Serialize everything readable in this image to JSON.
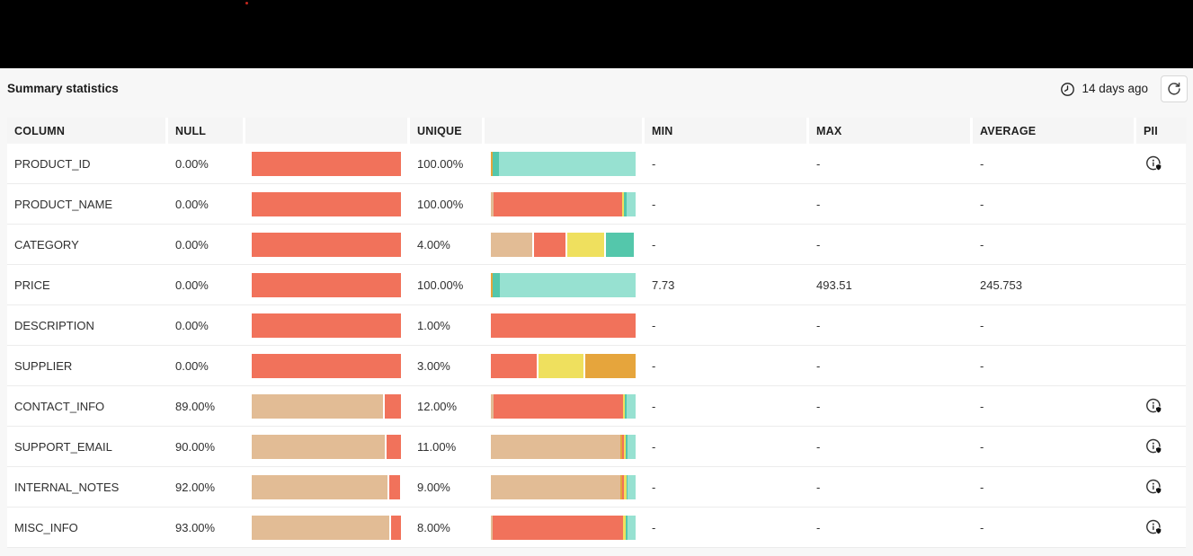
{
  "topbar": {
    "red_dot_color": "#c3271d"
  },
  "header": {
    "title": "Summary statistics",
    "updated": "14 days ago"
  },
  "colors": {
    "salmon": "#F1725B",
    "tan": "#E2BC95",
    "yellow": "#EFE05E",
    "amber": "#E6A53C",
    "teal": "#54C7AB",
    "tealLight": "#97E1D1"
  },
  "table": {
    "headers": [
      "COLUMN",
      "NULL",
      "",
      "UNIQUE",
      "",
      "MIN",
      "MAX",
      "AVERAGE",
      "PII"
    ],
    "rows": [
      {
        "column": "PRODUCT_ID",
        "null_pct": "0.00%",
        "unique_pct": "100.00%",
        "min": "-",
        "max": "-",
        "average": "-",
        "pii": true,
        "null_bar": {
          "gapped": false,
          "segments": [
            [
              "salmon",
              100
            ]
          ]
        },
        "unique_bar": {
          "gapped": false,
          "segments": [
            [
              "amber",
              1.5
            ],
            [
              "teal",
              4
            ],
            [
              "tealLight",
              94.5
            ]
          ]
        }
      },
      {
        "column": "PRODUCT_NAME",
        "null_pct": "0.00%",
        "unique_pct": "100.00%",
        "min": "-",
        "max": "-",
        "average": "-",
        "pii": false,
        "null_bar": {
          "gapped": false,
          "segments": [
            [
              "salmon",
              100
            ]
          ]
        },
        "unique_bar": {
          "gapped": false,
          "segments": [
            [
              "tan",
              2
            ],
            [
              "salmon",
              88.5
            ],
            [
              "yellow",
              1.3
            ],
            [
              "teal",
              1.7
            ],
            [
              "tealLight",
              6.5
            ]
          ]
        }
      },
      {
        "column": "CATEGORY",
        "null_pct": "0.00%",
        "unique_pct": "4.00%",
        "min": "-",
        "max": "-",
        "average": "-",
        "pii": false,
        "null_bar": {
          "gapped": false,
          "segments": [
            [
              "salmon",
              100
            ]
          ]
        },
        "unique_bar": {
          "gapped": true,
          "segments": [
            [
              "tan",
              28.5
            ],
            [
              "salmon",
              22
            ],
            [
              "yellow",
              25
            ],
            [
              "teal",
              19.5
            ]
          ]
        }
      },
      {
        "column": "PRICE",
        "null_pct": "0.00%",
        "unique_pct": "100.00%",
        "min": "7.73",
        "max": "493.51",
        "average": "245.753",
        "pii": false,
        "null_bar": {
          "gapped": false,
          "segments": [
            [
              "salmon",
              100
            ]
          ]
        },
        "unique_bar": {
          "gapped": false,
          "segments": [
            [
              "amber",
              1.3
            ],
            [
              "teal",
              4.7
            ],
            [
              "tealLight",
              94
            ]
          ]
        }
      },
      {
        "column": "DESCRIPTION",
        "null_pct": "0.00%",
        "unique_pct": "1.00%",
        "min": "-",
        "max": "-",
        "average": "-",
        "pii": false,
        "null_bar": {
          "gapped": false,
          "segments": [
            [
              "salmon",
              100
            ]
          ]
        },
        "unique_bar": {
          "gapped": false,
          "segments": [
            [
              "salmon",
              100
            ]
          ]
        }
      },
      {
        "column": "SUPPLIER",
        "null_pct": "0.00%",
        "unique_pct": "3.00%",
        "min": "-",
        "max": "-",
        "average": "-",
        "pii": false,
        "null_bar": {
          "gapped": false,
          "segments": [
            [
              "salmon",
              100
            ]
          ]
        },
        "unique_bar": {
          "gapped": true,
          "segments": [
            [
              "salmon",
              31.5
            ],
            [
              "yellow",
              31
            ],
            [
              "amber",
              35
            ]
          ]
        }
      },
      {
        "column": "CONTACT_INFO",
        "null_pct": "89.00%",
        "unique_pct": "12.00%",
        "min": "-",
        "max": "-",
        "average": "-",
        "pii": true,
        "null_bar": {
          "gapped": true,
          "segments": [
            [
              "tan",
              88
            ],
            [
              "salmon",
              10.5
            ]
          ]
        },
        "unique_bar": {
          "gapped": false,
          "segments": [
            [
              "tan",
              1.8
            ],
            [
              "salmon",
              89.5
            ],
            [
              "yellow",
              1.5
            ],
            [
              "teal",
              1.2
            ],
            [
              "tealLight",
              6
            ]
          ]
        }
      },
      {
        "column": "SUPPORT_EMAIL",
        "null_pct": "90.00%",
        "unique_pct": "11.00%",
        "min": "-",
        "max": "-",
        "average": "-",
        "pii": true,
        "null_bar": {
          "gapped": true,
          "segments": [
            [
              "tan",
              89
            ],
            [
              "salmon",
              9.5
            ]
          ]
        },
        "unique_bar": {
          "gapped": false,
          "segments": [
            [
              "tan",
              89.5
            ],
            [
              "amber",
              1
            ],
            [
              "salmon",
              1.3
            ],
            [
              "yellow",
              1.2
            ],
            [
              "teal",
              1.5
            ],
            [
              "tealLight",
              5.5
            ]
          ]
        }
      },
      {
        "column": "INTERNAL_NOTES",
        "null_pct": "92.00%",
        "unique_pct": "9.00%",
        "min": "-",
        "max": "-",
        "average": "-",
        "pii": true,
        "null_bar": {
          "gapped": true,
          "segments": [
            [
              "tan",
              91
            ],
            [
              "salmon",
              7.5
            ]
          ]
        },
        "unique_bar": {
          "gapped": false,
          "segments": [
            [
              "tan",
              89.5
            ],
            [
              "amber",
              1.3
            ],
            [
              "salmon",
              1.2
            ],
            [
              "yellow",
              1.5
            ],
            [
              "teal",
              1
            ],
            [
              "tealLight",
              5.5
            ]
          ]
        }
      },
      {
        "column": "MISC_INFO",
        "null_pct": "93.00%",
        "unique_pct": "8.00%",
        "min": "-",
        "max": "-",
        "average": "-",
        "pii": true,
        "null_bar": {
          "gapped": true,
          "segments": [
            [
              "tan",
              92
            ],
            [
              "salmon",
              6.5
            ]
          ]
        },
        "unique_bar": {
          "gapped": false,
          "segments": [
            [
              "tan",
              1.5
            ],
            [
              "salmon",
              90
            ],
            [
              "yellow",
              1.5
            ],
            [
              "teal",
              1.5
            ],
            [
              "tealLight",
              5.5
            ]
          ]
        }
      }
    ]
  }
}
